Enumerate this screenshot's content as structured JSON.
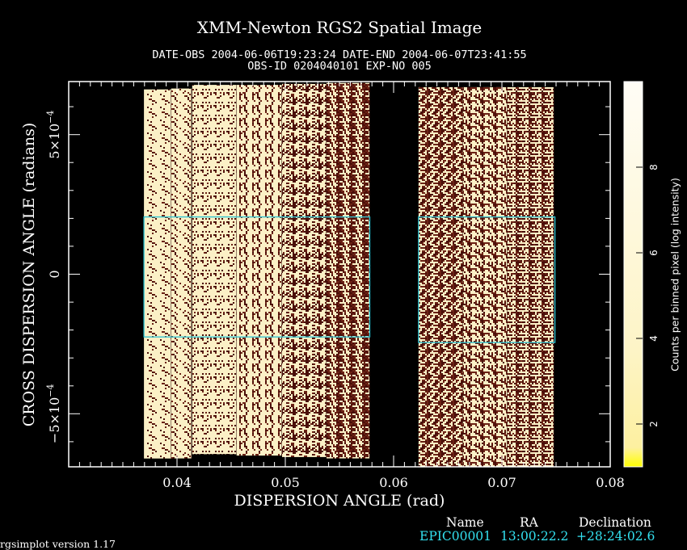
{
  "header": {
    "title": "XMM-Newton  RGS2 Spatial Image",
    "date_line": "DATE-OBS 2004-06-06T19:23:24   DATE-END 2004-06-07T23:41:55",
    "obs_line": "OBS-ID 0204040101 EXP-NO 005"
  },
  "chart_data": {
    "type": "heatmap",
    "title": "XMM-Newton  RGS2 Spatial Image",
    "xlabel": "DISPERSION ANGLE (rad)",
    "ylabel": "CROSS DISPERSION ANGLE (radians)",
    "colorbar_label": "Counts per binned pixel (log intensity)",
    "xlim": [
      0.03,
      0.08
    ],
    "ylim": [
      -0.00069,
      0.00069
    ],
    "clim": [
      1,
      10
    ],
    "x_ticks": [
      {
        "value": 0.04,
        "label": "0.04"
      },
      {
        "value": 0.05,
        "label": "0.05"
      },
      {
        "value": 0.06,
        "label": "0.06"
      },
      {
        "value": 0.07,
        "label": "0.07"
      },
      {
        "value": 0.08,
        "label": "0.08"
      }
    ],
    "y_ticks": [
      {
        "value": 0.0005,
        "label": "5×10",
        "exp": "−4"
      },
      {
        "value": 0,
        "label": "0",
        "exp": ""
      },
      {
        "value": -0.0005,
        "label": "−5×10",
        "exp": "−4"
      }
    ],
    "cbar_ticks": [
      {
        "value": 2,
        "label": "2"
      },
      {
        "value": 4,
        "label": "4"
      },
      {
        "value": 6,
        "label": "6"
      },
      {
        "value": 8,
        "label": "8"
      }
    ],
    "chips": [
      {
        "x0": 0.03695,
        "x1": 0.03946,
        "y0": -0.00066,
        "y1": 0.000662,
        "level": 8.6
      },
      {
        "x0": 0.03946,
        "x1": 0.04135,
        "y0": -0.00066,
        "y1": 0.000665,
        "level": 8.3
      },
      {
        "x0": 0.0414,
        "x1": 0.0455,
        "y0": -0.000645,
        "y1": 0.000678,
        "level": 8.0
      },
      {
        "x0": 0.0455,
        "x1": 0.0497,
        "y0": -0.00065,
        "y1": 0.000678,
        "level": 7.6
      },
      {
        "x0": 0.0497,
        "x1": 0.0538,
        "y0": -0.000655,
        "y1": 0.000682,
        "level": 6.6
      },
      {
        "x0": 0.0538,
        "x1": 0.0578,
        "y0": -0.00066,
        "y1": 0.000685,
        "level": 5.9
      },
      {
        "x0": 0.0623,
        "x1": 0.0664,
        "y0": -0.00069,
        "y1": 0.00067,
        "level": 5.6
      },
      {
        "x0": 0.0664,
        "x1": 0.0705,
        "y0": -0.00069,
        "y1": 0.00067,
        "level": 6.1
      },
      {
        "x0": 0.0705,
        "x1": 0.0748,
        "y0": -0.00069,
        "y1": 0.00067,
        "level": 5.9
      }
    ],
    "regions": [
      {
        "x0": 0.03695,
        "x1": 0.0578,
        "y0": -0.000225,
        "y1": 0.000205
      },
      {
        "x0": 0.0623,
        "x1": 0.0749,
        "y0": -0.000245,
        "y1": 0.000205
      }
    ]
  },
  "source_table": {
    "headers": [
      "Name",
      "RA",
      "Declination"
    ],
    "row": [
      "EPIC00001",
      "13:00:22.2",
      "+28:24:02.6"
    ]
  },
  "footer": {
    "version": "rgsimplot version 1.17"
  },
  "colors": {
    "background": "#000000",
    "axes": "#ffffff",
    "region": "#2ac4d4",
    "source_text": "#33e0ef"
  }
}
